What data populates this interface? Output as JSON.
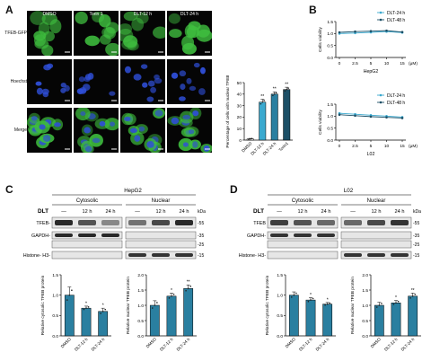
{
  "panelA": {
    "letter": "A",
    "columns": [
      "DMSO",
      "Torin 1",
      "DLT-12 h",
      "DLT-24 h"
    ],
    "rows": [
      "TFEB-GFP",
      "Hoechst",
      "Merge"
    ],
    "colors": {
      "green": "#3fbf3f",
      "blue": "#2f4fd8",
      "bg": "#050505"
    },
    "chart_data": {
      "type": "bar",
      "categories": [
        "DMSO",
        "DLT-12 h",
        "DLT-24 h",
        "Torin1"
      ],
      "values": [
        1,
        33,
        40,
        44
      ],
      "errors": [
        0.5,
        2.5,
        2,
        2
      ],
      "sig": [
        "",
        "**",
        "**",
        "**"
      ],
      "ylabel": "Percentage of cells with nuclear TFEB",
      "ylim": [
        0,
        50
      ],
      "yticks": [
        "0",
        "10",
        "20",
        "30",
        "40",
        "50"
      ],
      "colors": [
        "#ffffff",
        "#3aa9cf",
        "#2a7fa0",
        "#1c4f66"
      ]
    }
  },
  "panelB": {
    "letter": "B",
    "xticks": [
      "0",
      "2.5",
      "5",
      "10",
      "15"
    ],
    "xunit": "(μM)",
    "yticks": [
      "0.0",
      "0.5",
      "1.0",
      "1.5"
    ],
    "ylabel": "Cells viability",
    "charts": [
      {
        "type": "line",
        "title": "HepG2",
        "x": [
          0,
          2.5,
          5,
          10,
          15
        ],
        "ylim": [
          0,
          1.5
        ],
        "series": [
          {
            "name": "DLT-24 h",
            "values": [
              1.0,
              1.02,
              1.05,
              1.08,
              1.04
            ],
            "color": "#3aa9cf"
          },
          {
            "name": "DLT-48 h",
            "values": [
              1.05,
              1.08,
              1.1,
              1.12,
              1.06
            ],
            "color": "#1c4f66"
          }
        ]
      },
      {
        "type": "line",
        "title": "L02",
        "x": [
          0,
          2.5,
          5,
          10,
          15
        ],
        "ylim": [
          0,
          1.5
        ],
        "series": [
          {
            "name": "DLT-24 h",
            "values": [
              1.12,
              1.08,
              1.04,
              1.0,
              0.96
            ],
            "color": "#3aa9cf"
          },
          {
            "name": "DLT-48 h",
            "values": [
              1.06,
              1.02,
              0.98,
              0.95,
              0.92
            ],
            "color": "#1c4f66"
          }
        ]
      }
    ]
  },
  "panelC": {
    "letter": "C",
    "cell_line": "HepG2",
    "fractions": [
      "Cytosolic",
      "Nuclear"
    ],
    "dlt_label": "DLT",
    "lanes": [
      "—",
      "12 h",
      "24 h"
    ],
    "kda": "kDa",
    "bands": [
      {
        "name": "TFEB-",
        "marker": "55"
      },
      {
        "name": "GAPDH-",
        "marker": "35"
      },
      {
        "name": "",
        "marker": "25"
      },
      {
        "name": "Histone- H3-",
        "marker": "15"
      }
    ],
    "intensity": {
      "cyto_tfeb": [
        0.9,
        0.7,
        0.45
      ],
      "nuc_tfeb": [
        0.55,
        0.75,
        0.9
      ],
      "gapdh": [
        0.9,
        0.9,
        0.9
      ],
      "h3": [
        0.85,
        0.85,
        0.85
      ]
    },
    "charts": [
      {
        "type": "bar",
        "ylabel": "Relative cytosolic TFEB protein",
        "categories": [
          "DMSO",
          "DLT-12 h",
          "DLT-24 h"
        ],
        "values": [
          1.0,
          0.68,
          0.6
        ],
        "errors": [
          0.2,
          0.05,
          0.08
        ],
        "sig": [
          "",
          "*",
          "*"
        ],
        "ylim": [
          0,
          1.5
        ],
        "yticks": [
          "0.0",
          "0.5",
          "1.0",
          "1.5"
        ]
      },
      {
        "type": "bar",
        "ylabel": "Relative nuclear TFEB protein",
        "categories": [
          "DMSO",
          "DLT-12 h",
          "DLT-24 h"
        ],
        "values": [
          1.0,
          1.3,
          1.55
        ],
        "errors": [
          0.15,
          0.1,
          0.12
        ],
        "sig": [
          "",
          "*",
          "**"
        ],
        "ylim": [
          0,
          2.0
        ],
        "yticks": [
          "0.0",
          "0.5",
          "1.0",
          "1.5",
          "2.0"
        ]
      }
    ]
  },
  "panelD": {
    "letter": "D",
    "cell_line": "L02",
    "fractions": [
      "Cytosolic",
      "Nuclear"
    ],
    "dlt_label": "DLT",
    "lanes": [
      "—",
      "12 h",
      "24 h"
    ],
    "kda": "kDa",
    "bands": [
      {
        "name": "TFEB",
        "marker": "55"
      },
      {
        "name": "GAPDH-",
        "marker": "35"
      },
      {
        "name": "",
        "marker": "25"
      },
      {
        "name": "Histone- H3-",
        "marker": "15"
      }
    ],
    "intensity": {
      "cyto_tfeb": [
        0.8,
        0.7,
        0.6
      ],
      "nuc_tfeb": [
        0.6,
        0.75,
        0.85
      ],
      "gapdh": [
        0.85,
        0.85,
        0.85
      ],
      "h3": [
        0.85,
        0.85,
        0.85
      ]
    },
    "charts": [
      {
        "type": "bar",
        "ylabel": "Relative cytosolic TFEB protein",
        "categories": [
          "DMSO",
          "DLT-12 h",
          "DLT-24 h"
        ],
        "values": [
          1.0,
          0.88,
          0.78
        ],
        "errors": [
          0.08,
          0.06,
          0.04
        ],
        "sig": [
          "",
          "*",
          "*"
        ],
        "ylim": [
          0,
          1.5
        ],
        "yticks": [
          "0.0",
          "0.5",
          "1.0",
          "1.5"
        ]
      },
      {
        "type": "bar",
        "ylabel": "Relative nuclear TFEB protein",
        "categories": [
          "DMSO",
          "DLT-12 h",
          "DLT-24 h"
        ],
        "values": [
          1.0,
          1.08,
          1.3
        ],
        "errors": [
          0.1,
          0.08,
          0.1
        ],
        "sig": [
          "",
          "*",
          "**"
        ],
        "ylim": [
          0,
          2.0
        ],
        "yticks": [
          "0.0",
          "0.5",
          "1.0",
          "1.5",
          "2.0"
        ]
      }
    ]
  }
}
